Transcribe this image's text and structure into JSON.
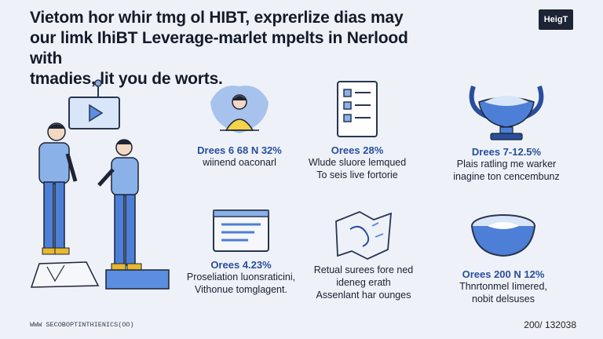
{
  "headline": {
    "line1": "Vietom hor whir tmg ol HIBT, exprerlize dias may",
    "line2": "our limk IhiBT Leverage-marlet mpelts in Nerlood with",
    "line3": "tmadies, lit you de worts."
  },
  "logo": "HeiɡT",
  "cards": [
    {
      "stat_label": "Drees",
      "stat_value": "6 68 N 32%",
      "line1": "wiinend oaconarl",
      "line2": "",
      "icon": "mentor-icon"
    },
    {
      "stat_label": "Orees",
      "stat_value": "28%",
      "line1": "Wlude sluore lemqued",
      "line2": "To seis live fortorie",
      "icon": "checklist-icon"
    },
    {
      "stat_label": "Drees",
      "stat_value": "7-12.5%",
      "line1": "Plais ratling me warker",
      "line2": "inagine ton cencembunz",
      "icon": "trophy-bowl-icon"
    },
    {
      "stat_label": "Orees",
      "stat_value": "4.23%",
      "line1": "Proseliation luonsraticini,",
      "line2": "Vithonue tomglagent.",
      "icon": "calendar-card-icon"
    },
    {
      "stat_label": "",
      "stat_value": "",
      "line1": "Retual surees fore ned",
      "line2": "ideneg erath",
      "line3": "Assenlant har ounges",
      "icon": "torn-map-icon"
    },
    {
      "stat_label": "Orees",
      "stat_value": "200 N 12%",
      "line1": "Thnrtonmel Iimered,",
      "line2": "nobit delsuses",
      "icon": "bowl-icon"
    }
  ],
  "footer": {
    "left": "WWW SECOBOPTINTHIENICS(OO)",
    "right": "200/ 132038"
  },
  "colors": {
    "accent": "#2a4e9c",
    "accent_light": "#5b8de0",
    "bg": "#eef2f8"
  }
}
